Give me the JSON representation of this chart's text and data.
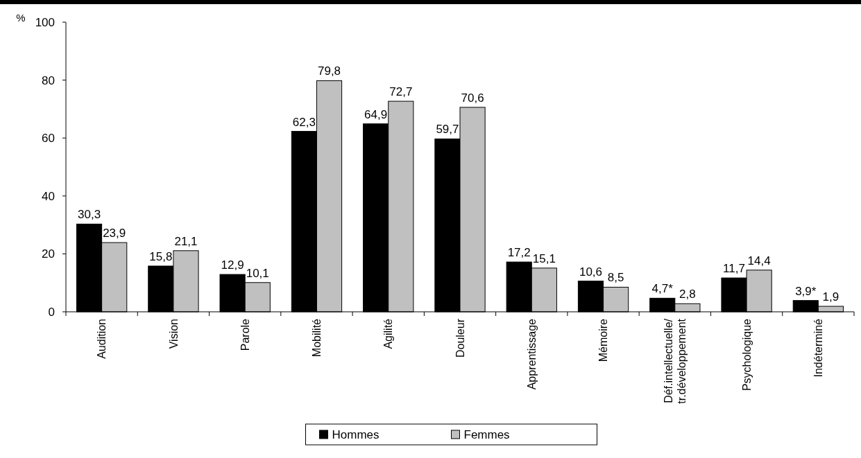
{
  "chart_data": {
    "type": "bar",
    "ylabel": "%",
    "categories": [
      "Audition",
      "Vision",
      "Parole",
      "Mobilité",
      "Agilité",
      "Douleur",
      "Apprentissage",
      "Mémoire",
      "Déf.intellectuelle/\ntr.développement",
      "Psychologique",
      "Indéterminé"
    ],
    "series": [
      {
        "name": "Hommes",
        "color": "#000000",
        "values": [
          30.3,
          15.8,
          12.9,
          62.3,
          64.9,
          59.7,
          17.2,
          10.6,
          4.7,
          11.7,
          3.9
        ],
        "value_labels": [
          "30,3",
          "15,8",
          "12,9",
          "62,3",
          "64,9",
          "59,7",
          "17,2",
          "10,6",
          "4,7*",
          "11,7",
          "3,9*"
        ]
      },
      {
        "name": "Femmes",
        "color": "#c0c0c0",
        "values": [
          23.9,
          21.1,
          10.1,
          79.8,
          72.7,
          70.6,
          15.1,
          8.5,
          2.8,
          14.4,
          1.9
        ],
        "value_labels": [
          "23,9",
          "21,1",
          "10,1",
          "79,8",
          "72,7",
          "70,6",
          "15,1",
          "8,5",
          "2,8",
          "14,4",
          "1,9"
        ]
      }
    ],
    "ylim": [
      0,
      100
    ],
    "yticks": [
      0,
      20,
      40,
      60,
      80,
      100
    ],
    "grid": false,
    "legend": "bottom"
  }
}
